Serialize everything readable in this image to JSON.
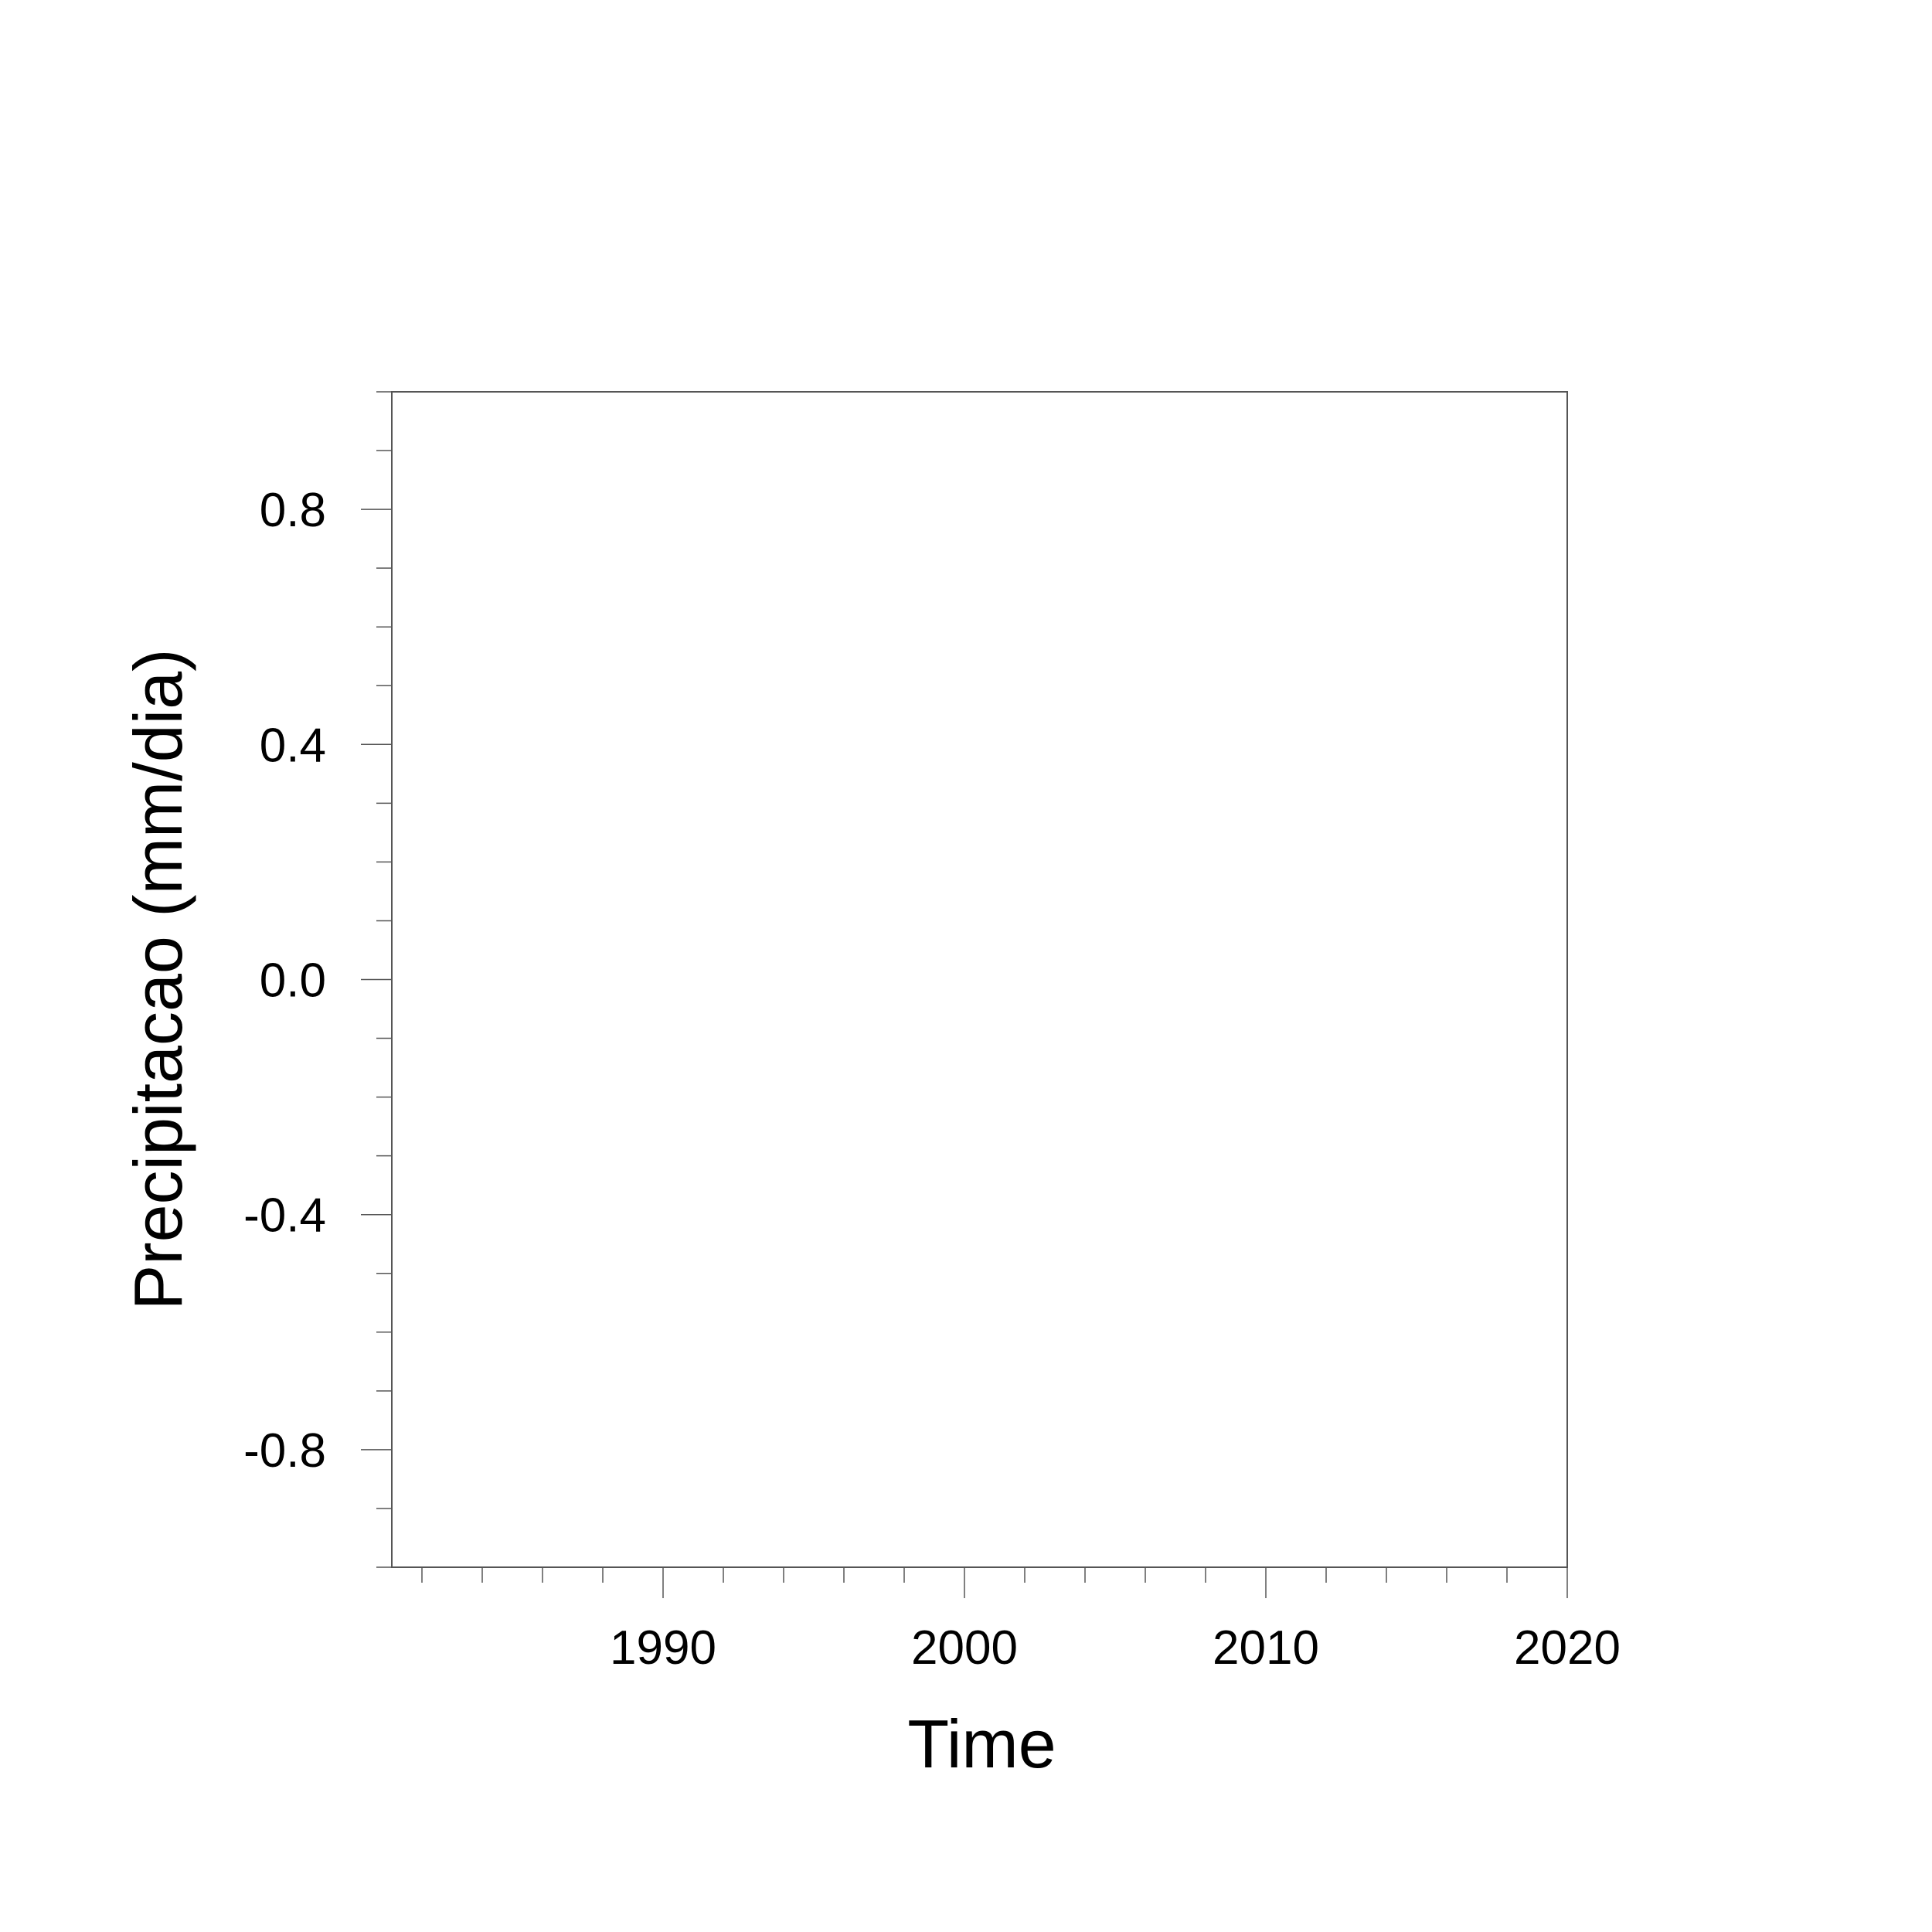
{
  "chart_data": {
    "type": "line",
    "title": "",
    "xlabel": "Time",
    "ylabel": "Precipitacao (mm/dia)",
    "xlim": [
      1981,
      2020
    ],
    "ylim": [
      -1.0,
      1.0
    ],
    "x_ticks": [
      {
        "value": 1990,
        "label": "1990"
      },
      {
        "value": 2000,
        "label": "2000"
      },
      {
        "value": 2010,
        "label": "2010"
      },
      {
        "value": 2020,
        "label": "2020"
      }
    ],
    "x_minor_step": 2,
    "y_ticks": [
      {
        "value": 0.8,
        "label": "0.8"
      },
      {
        "value": 0.4,
        "label": "0.4"
      },
      {
        "value": 0.0,
        "label": "0.0"
      },
      {
        "value": -0.4,
        "label": "-0.4"
      },
      {
        "value": -0.8,
        "label": "-0.8"
      }
    ],
    "y_minor_step": 0.1,
    "series": [],
    "grid": false,
    "axis_color": "#000000",
    "frame_color": "#555555"
  }
}
